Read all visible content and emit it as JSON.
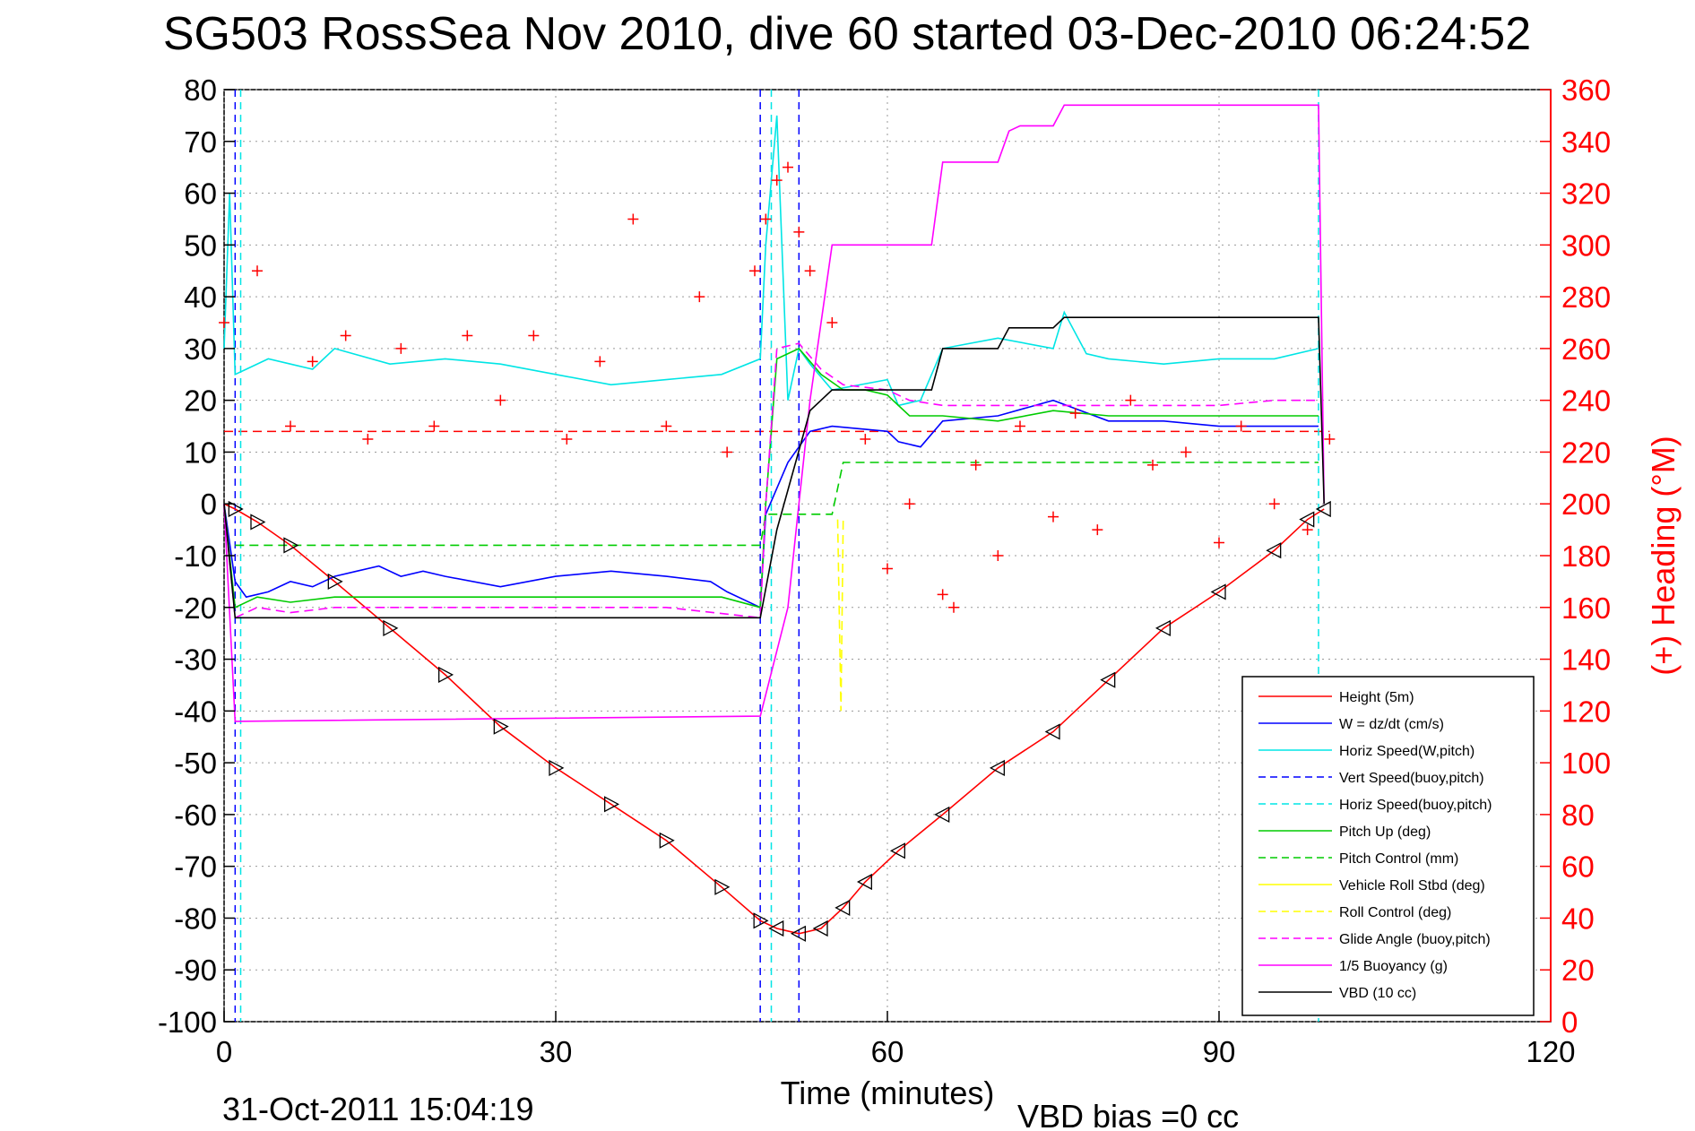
{
  "chart_data": {
    "type": "line",
    "title": "SG503 RossSea Nov 2010, dive 60 started 03-Dec-2010 06:24:52",
    "xlabel": "Time (minutes)",
    "ylabel": "",
    "ylabel_right": "(+) Heading (°M)",
    "footer_left": "31-Oct-2011 15:04:19",
    "footer_right": "VBD bias =0 cc",
    "xlim": [
      0,
      120
    ],
    "ylim": [
      -100,
      80
    ],
    "ylim_right": [
      0,
      360
    ],
    "xticks": [
      0,
      30,
      60,
      90,
      120
    ],
    "yticks": [
      80,
      70,
      60,
      50,
      40,
      30,
      20,
      10,
      0,
      -10,
      -20,
      -30,
      -40,
      -50,
      -60,
      -70,
      -80,
      -90,
      -100
    ],
    "yticks_right": [
      360,
      340,
      320,
      300,
      280,
      260,
      240,
      220,
      200,
      180,
      160,
      140,
      120,
      100,
      80,
      60,
      40,
      20,
      0
    ],
    "grid": true,
    "legend_position": "bottom-right",
    "series": [
      {
        "name": "Height (5m)",
        "color": "#ff0000",
        "style": "solid",
        "axis": "left",
        "x": [
          0,
          1,
          3,
          6,
          10,
          15,
          20,
          25,
          30,
          35,
          40,
          45,
          48.5,
          50,
          52,
          54,
          56,
          58,
          61,
          65,
          70,
          75,
          80,
          85,
          90,
          95,
          98,
          99.5
        ],
        "y": [
          0,
          -1,
          -3.5,
          -8,
          -15,
          -24,
          -33,
          -43,
          -51,
          -58,
          -65,
          -74,
          -80.5,
          -82,
          -83,
          -82,
          -78,
          -73,
          -67,
          -60,
          -51,
          -44,
          -34,
          -24,
          -17,
          -9,
          -3,
          -1
        ]
      },
      {
        "name": "W = dz/dt (cm/s)",
        "color": "#0000ff",
        "style": "solid",
        "axis": "left",
        "x": [
          0,
          1,
          2,
          4,
          6,
          8,
          10,
          12,
          14,
          16,
          18,
          20,
          25,
          30,
          35,
          40,
          44,
          45.5,
          48.5,
          49,
          51,
          53,
          55,
          60,
          61,
          63,
          65,
          70,
          75,
          80,
          85,
          90,
          95,
          99
        ],
        "y": [
          0,
          -15,
          -18,
          -17,
          -15,
          -16,
          -14,
          -13,
          -12,
          -14,
          -13,
          -14,
          -16,
          -14,
          -13,
          -14,
          -15,
          -17,
          -20,
          -2,
          8,
          14,
          15,
          14,
          12,
          11,
          16,
          17,
          20,
          16,
          16,
          15,
          15,
          15
        ]
      },
      {
        "name": "Horiz Speed(W,pitch)",
        "color": "#00e5e5",
        "style": "solid",
        "axis": "left",
        "x": [
          0,
          0.5,
          1,
          2,
          4,
          6,
          8,
          10,
          15,
          20,
          25,
          30,
          35,
          40,
          45,
          48.5,
          49,
          50,
          51,
          52,
          53,
          55,
          60,
          61,
          63,
          65,
          70,
          75,
          76,
          78,
          80,
          85,
          90,
          95,
          99
        ],
        "y": [
          30,
          60,
          25,
          26,
          28,
          27,
          26,
          30,
          27,
          28,
          27,
          25,
          23,
          24,
          25,
          28,
          50,
          75,
          20,
          30,
          27,
          22,
          24,
          19,
          20,
          30,
          32,
          30,
          37,
          29,
          28,
          27,
          28,
          28,
          30
        ]
      },
      {
        "name": "Vert Speed(buoy,pitch)",
        "color": "#0000ff",
        "style": "dashed",
        "axis": "left",
        "x": [],
        "y": []
      },
      {
        "name": "Horiz Speed(buoy,pitch)",
        "color": "#00e5e5",
        "style": "dashed",
        "axis": "left",
        "x": [],
        "y": []
      },
      {
        "name": "Pitch Up (deg)",
        "color": "#00cc00",
        "style": "solid",
        "axis": "left",
        "x": [
          0,
          1,
          3,
          6,
          10,
          15,
          20,
          30,
          40,
          45,
          48.5,
          49,
          50,
          52,
          54,
          56,
          58,
          60,
          62,
          65,
          70,
          75,
          80,
          85,
          90,
          95,
          99
        ],
        "y": [
          0,
          -20,
          -18,
          -19,
          -18,
          -18,
          -18,
          -18,
          -18,
          -18,
          -20,
          0,
          28,
          30,
          25,
          22,
          22,
          21,
          17,
          17,
          16,
          18,
          17,
          17,
          17,
          17,
          17
        ]
      },
      {
        "name": "Pitch Control (mm)",
        "color": "#00cc00",
        "style": "dashed",
        "axis": "left",
        "x": [
          1,
          48.5,
          49,
          55,
          56,
          99
        ],
        "y": [
          -8,
          -8,
          -2,
          -2,
          8,
          8
        ]
      },
      {
        "name": "Vehicle Roll Stbd (deg)",
        "color": "#ffff00",
        "style": "solid",
        "axis": "left",
        "x": [],
        "y": []
      },
      {
        "name": "Roll Control (deg)",
        "color": "#ffff00",
        "style": "dashed",
        "axis": "left",
        "x": [
          55.5,
          55.8,
          56
        ],
        "y": [
          -3,
          -40,
          -3
        ]
      },
      {
        "name": "Glide Angle (buoy,pitch)",
        "color": "#ff00ff",
        "style": "dashed",
        "axis": "left",
        "x": [
          0,
          1,
          3,
          6,
          10,
          20,
          30,
          40,
          48.5,
          49,
          50,
          52,
          54,
          56,
          60,
          62,
          65,
          70,
          75,
          80,
          85,
          90,
          95,
          99
        ],
        "y": [
          0,
          -22,
          -20,
          -21,
          -20,
          -20,
          -20,
          -20,
          -22,
          0,
          30,
          31,
          26,
          23,
          22,
          20,
          19,
          19,
          19,
          19,
          19,
          19,
          20,
          20
        ]
      },
      {
        "name": "1/5 Buoyancy (g)",
        "color": "#ff00ff",
        "style": "solid",
        "axis": "left",
        "x": [
          0,
          1,
          48.5,
          51,
          52,
          53,
          55,
          60,
          64,
          65,
          70,
          71,
          72,
          75,
          76,
          77,
          99,
          99.5
        ],
        "y": [
          0,
          -42,
          -41,
          -20,
          0,
          20,
          50,
          50,
          50,
          66,
          66,
          72,
          73,
          73,
          77,
          77,
          77,
          0
        ]
      },
      {
        "name": "VBD (10 cc)",
        "color": "#000000",
        "style": "solid",
        "axis": "left",
        "x": [
          0,
          1,
          48.5,
          50,
          53,
          55,
          60,
          64,
          65,
          70,
          71,
          72,
          75,
          76,
          77,
          99,
          99.5
        ],
        "y": [
          0,
          -22,
          -22,
          -5,
          18,
          22,
          22,
          22,
          30,
          30,
          34,
          34,
          34,
          36,
          36,
          36,
          0
        ]
      },
      {
        "name": "Heading",
        "color": "#ff0000",
        "style": "markers",
        "axis": "right",
        "x": [
          0,
          3,
          6,
          8,
          11,
          13,
          16,
          19,
          22,
          25,
          28,
          31,
          34,
          37,
          40,
          43,
          45.5,
          48,
          49,
          50,
          51,
          52,
          53,
          55,
          58,
          60,
          62,
          65,
          66,
          68,
          70,
          72,
          75,
          77,
          79,
          82,
          84,
          87,
          90,
          92,
          95,
          98,
          100
        ],
        "y": [
          270,
          290,
          230,
          255,
          265,
          225,
          260,
          230,
          265,
          240,
          265,
          225,
          255,
          310,
          230,
          280,
          220,
          290,
          310,
          325,
          330,
          305,
          290,
          270,
          225,
          175,
          200,
          165,
          160,
          215,
          180,
          230,
          195,
          235,
          190,
          240,
          215,
          220,
          185,
          230,
          200,
          190,
          225
        ]
      }
    ],
    "reference_line": {
      "name": "mean heading",
      "axis": "right",
      "value": 228,
      "color": "#ff0000",
      "style": "dashed"
    },
    "markers_triangles": {
      "color": "#000000",
      "axis": "left"
    }
  }
}
